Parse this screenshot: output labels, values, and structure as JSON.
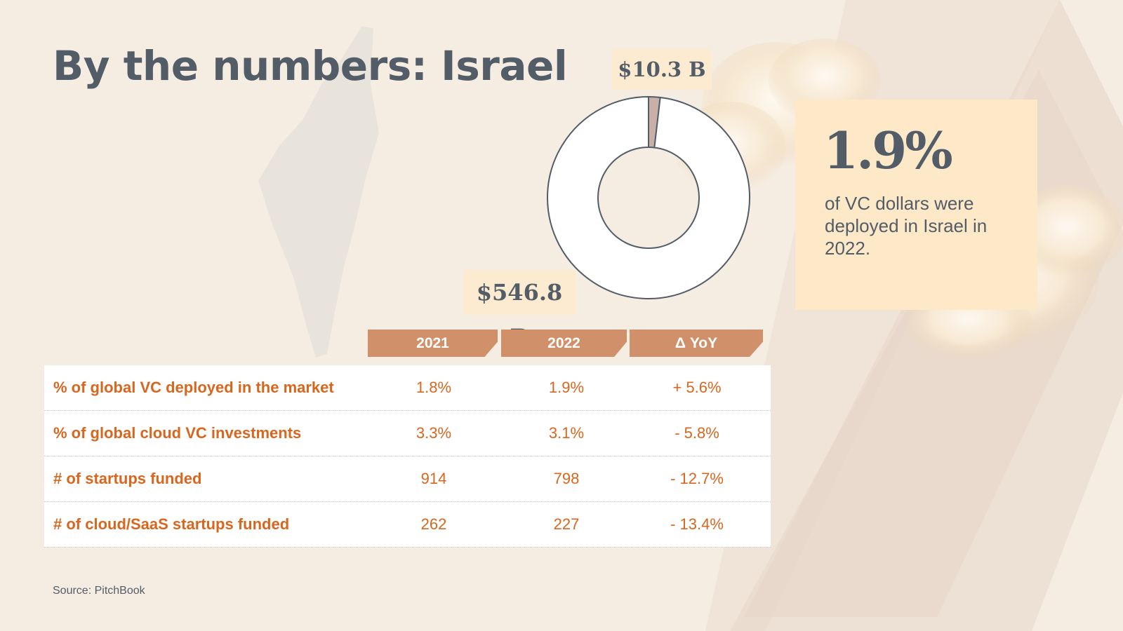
{
  "title": "By the numbers: Israel",
  "source": "Source: PitchBook",
  "colors": {
    "background": "#f6ede2",
    "text_dark": "#525d68",
    "accent_orange": "#d9661e",
    "header_fill": "#d0906a",
    "label_fill": "#fcebd0",
    "stat_box_fill": "#fde9c8",
    "slice_israel": "#c9b0a7"
  },
  "stat": {
    "value": "1.9%",
    "description": "of VC dollars were deployed in Israel in 2022."
  },
  "chart_data": [
    {
      "type": "pie",
      "labels": [
        "$10.3 B",
        "$546.8 B"
      ],
      "values": [
        10.3,
        546.8
      ]
    },
    {
      "type": "table",
      "columns": [
        "2021",
        "2022",
        "Δ YoY"
      ],
      "rows": [
        {
          "metric": "% of global VC deployed in the market",
          "values": [
            "1.8%",
            "1.9%",
            "+ 5.6%"
          ]
        },
        {
          "metric": "% of global cloud VC investments",
          "values": [
            "3.3%",
            "3.1%",
            "- 5.8%"
          ]
        },
        {
          "metric": "# of startups funded",
          "values": [
            "914",
            "798",
            "- 12.7%"
          ]
        },
        {
          "metric": "# of cloud/SaaS startups funded",
          "values": [
            "262",
            "227",
            "- 13.4%"
          ]
        }
      ]
    }
  ]
}
